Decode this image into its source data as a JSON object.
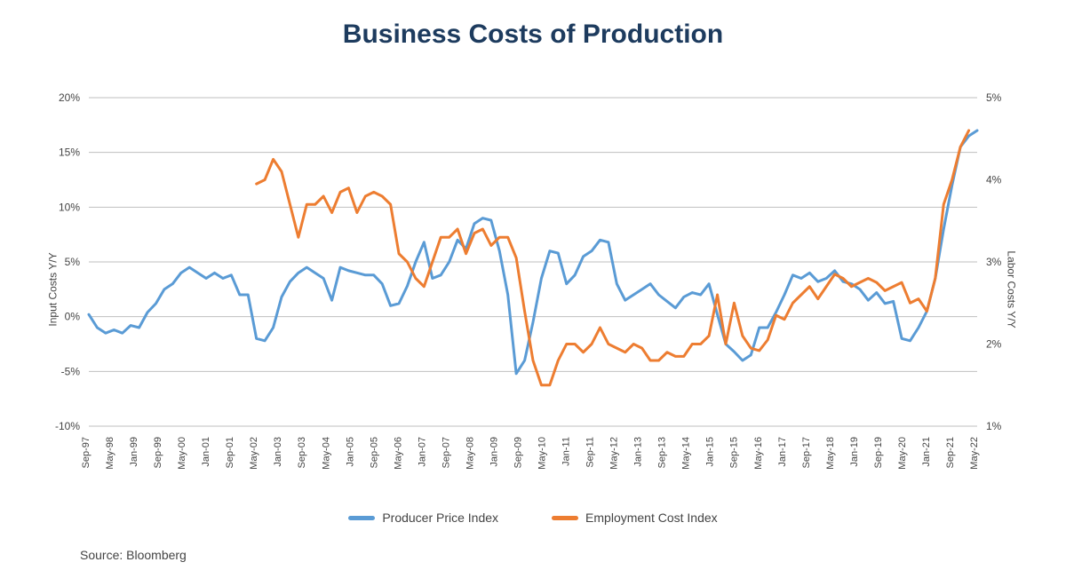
{
  "title": {
    "text": "Business Costs of Production",
    "fontsize": 30,
    "color": "#1d3b5e",
    "weight": 700
  },
  "chart": {
    "type": "line",
    "background_color": "#ffffff",
    "grid_color": "#bfbfbf",
    "axis_font_size": 12,
    "x_labels": [
      "Sep-97",
      "May-98",
      "Jan-99",
      "Sep-99",
      "May-00",
      "Jan-01",
      "Sep-01",
      "May-02",
      "Jan-03",
      "Sep-03",
      "May-04",
      "Jan-05",
      "Sep-05",
      "May-06",
      "Jan-07",
      "Sep-07",
      "May-08",
      "Jan-09",
      "Sep-09",
      "May-10",
      "Jan-11",
      "Sep-11",
      "May-12",
      "Jan-13",
      "Sep-13",
      "May-14",
      "Jan-15",
      "Sep-15",
      "May-16",
      "Jan-17",
      "Sep-17",
      "May-18",
      "Jan-19",
      "Sep-19",
      "May-20",
      "Jan-21",
      "Sep-21",
      "May-22"
    ],
    "y_left": {
      "label": "Input Costs Y/Y",
      "min": -10,
      "max": 20,
      "ticks": [
        -10,
        -5,
        0,
        5,
        10,
        15,
        20
      ],
      "tick_labels": [
        "-10%",
        "-5%",
        "0%",
        "5%",
        "10%",
        "15%",
        "20%"
      ],
      "label_fontsize": 12
    },
    "y_right": {
      "label": "Labor Costs Y/Y",
      "min": 1,
      "max": 5,
      "ticks": [
        1,
        2,
        3,
        4,
        5
      ],
      "tick_labels": [
        "1%",
        "2%",
        "3%",
        "4%",
        "5%"
      ],
      "label_fontsize": 12
    },
    "series": [
      {
        "name": "Producer Price Index",
        "axis": "left",
        "color": "#5a9bd5",
        "line_width": 3,
        "data": [
          0.2,
          -1.0,
          -1.5,
          -1.2,
          -1.5,
          -0.8,
          -1.0,
          0.4,
          1.2,
          2.5,
          3.0,
          4.0,
          4.5,
          4.0,
          3.5,
          4.0,
          3.5,
          3.8,
          2.0,
          2.0,
          -2.0,
          -2.2,
          -1.0,
          1.8,
          3.2,
          4.0,
          4.5,
          4.0,
          3.5,
          1.5,
          4.5,
          4.2,
          4.0,
          3.8,
          3.8,
          3.0,
          1.0,
          1.2,
          2.8,
          5.0,
          6.8,
          3.5,
          3.8,
          5.0,
          7.0,
          6.2,
          8.5,
          9.0,
          8.8,
          6.0,
          2.0,
          -5.2,
          -4.0,
          -0.5,
          3.5,
          6.0,
          5.8,
          3.0,
          3.8,
          5.5,
          6.0,
          7.0,
          6.8,
          3.0,
          1.5,
          2.0,
          2.5,
          3.0,
          2.0,
          1.4,
          0.8,
          1.8,
          2.2,
          2.0,
          3.0,
          0.2,
          -2.5,
          -3.2,
          -4.0,
          -3.5,
          -1.0,
          -1.0,
          0.4,
          2.0,
          3.8,
          3.5,
          4.0,
          3.2,
          3.5,
          4.2,
          3.2,
          3.0,
          2.5,
          1.5,
          2.2,
          1.2,
          1.4,
          -2.0,
          -2.2,
          -1.0,
          0.5,
          3.5,
          8.0,
          12.0,
          15.5,
          16.5,
          17.0
        ]
      },
      {
        "name": "Employment Cost Index",
        "axis": "right",
        "color": "#ed7d31",
        "line_width": 3,
        "start_index": 20,
        "data": [
          3.95,
          4.0,
          4.25,
          4.1,
          3.7,
          3.3,
          3.7,
          3.7,
          3.8,
          3.6,
          3.85,
          3.9,
          3.6,
          3.8,
          3.85,
          3.8,
          3.7,
          3.1,
          3.0,
          2.8,
          2.7,
          3.0,
          3.3,
          3.3,
          3.4,
          3.1,
          3.35,
          3.4,
          3.2,
          3.3,
          3.3,
          3.05,
          2.4,
          1.8,
          1.5,
          1.5,
          1.8,
          2.0,
          2.0,
          1.9,
          2.0,
          2.2,
          2.0,
          1.95,
          1.9,
          2.0,
          1.95,
          1.8,
          1.8,
          1.9,
          1.85,
          1.85,
          2.0,
          2.0,
          2.1,
          2.6,
          2.0,
          2.5,
          2.1,
          1.95,
          1.92,
          2.05,
          2.35,
          2.3,
          2.5,
          2.6,
          2.7,
          2.55,
          2.7,
          2.85,
          2.8,
          2.7,
          2.75,
          2.8,
          2.75,
          2.65,
          2.7,
          2.75,
          2.5,
          2.55,
          2.4,
          2.8,
          3.7,
          4.0,
          4.4,
          4.6
        ]
      }
    ],
    "legend": {
      "position": "bottom",
      "fontsize": 14,
      "items": [
        {
          "label": "Producer Price Index",
          "color": "#5a9bd5"
        },
        {
          "label": "Employment Cost Index",
          "color": "#ed7d31"
        }
      ]
    }
  },
  "source": {
    "text": "Source: Bloomberg",
    "fontsize": 14,
    "color": "#444"
  }
}
